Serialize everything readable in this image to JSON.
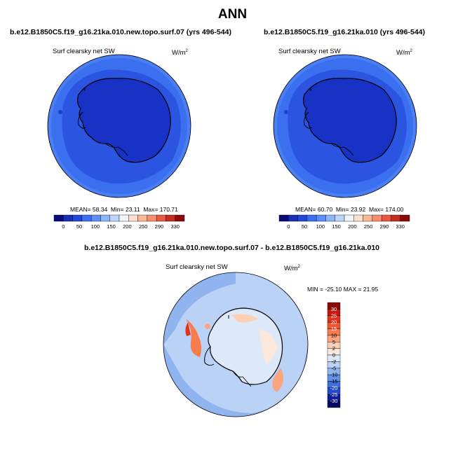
{
  "main_title": "ANN",
  "panels": [
    {
      "case_title": "b.e12.B1850C5.f19_g16.21ka.010.new.topo.surf.07 (yrs 496-544)",
      "variable": "Surf clearsky net SW",
      "units": "W/m",
      "units_exp": "2",
      "stats": {
        "mean_label": "MEAN=",
        "mean": "58.34",
        "min_label": "Min=",
        "min": "23.11",
        "max_label": "Max=",
        "max": "170.71"
      }
    },
    {
      "case_title": "b.e12.B1850C5.f19_g16.21ka.010 (yrs 496-544)",
      "variable": "Surf clearsky net SW",
      "units": "W/m",
      "units_exp": "2",
      "stats": {
        "mean_label": "MEAN=",
        "mean": "60.70",
        "min_label": "Min=",
        "min": "23.92",
        "max_label": "Max=",
        "max": "174.00"
      }
    }
  ],
  "abs_colorbar": {
    "labels": [
      "0",
      "50",
      "100",
      "150",
      "200",
      "250",
      "290",
      "330"
    ],
    "colors": [
      "#0a0a78",
      "#1a2fb8",
      "#2149d6",
      "#3d6ff0",
      "#5b8ff5",
      "#8cb5fa",
      "#bcd6fb",
      "#f0f4f8",
      "#fde0cf",
      "#fbb898",
      "#f78d6e",
      "#e85a3f",
      "#c42d1f",
      "#8a0a0a"
    ]
  },
  "diff_panel": {
    "case_title": "b.e12.B1850C5.f19_g16.21ka.010.new.topo.surf.07 - b.e12.B1850C5.f19_g16.21ka.010",
    "variable": "Surf clearsky net SW",
    "units": "W/m",
    "units_exp": "2",
    "minmax": "MIN = -25.10 MAX =  21.95"
  },
  "diff_colorbar": {
    "labels": [
      "30",
      "25",
      "20",
      "15",
      "10",
      "5",
      "2",
      "0",
      "-2",
      "-5",
      "-10",
      "-15",
      "-20",
      "-25",
      "-30"
    ],
    "colors": [
      "#8a0a0a",
      "#c41a10",
      "#e0331a",
      "#f2562e",
      "#f97c4f",
      "#fba47e",
      "#fdcfb4",
      "#fde8dc",
      "#dde9f9",
      "#b9d2f6",
      "#8fb4f0",
      "#6391ea",
      "#3d6fe2",
      "#2449cc",
      "#141e9a",
      "#070a60"
    ]
  }
}
